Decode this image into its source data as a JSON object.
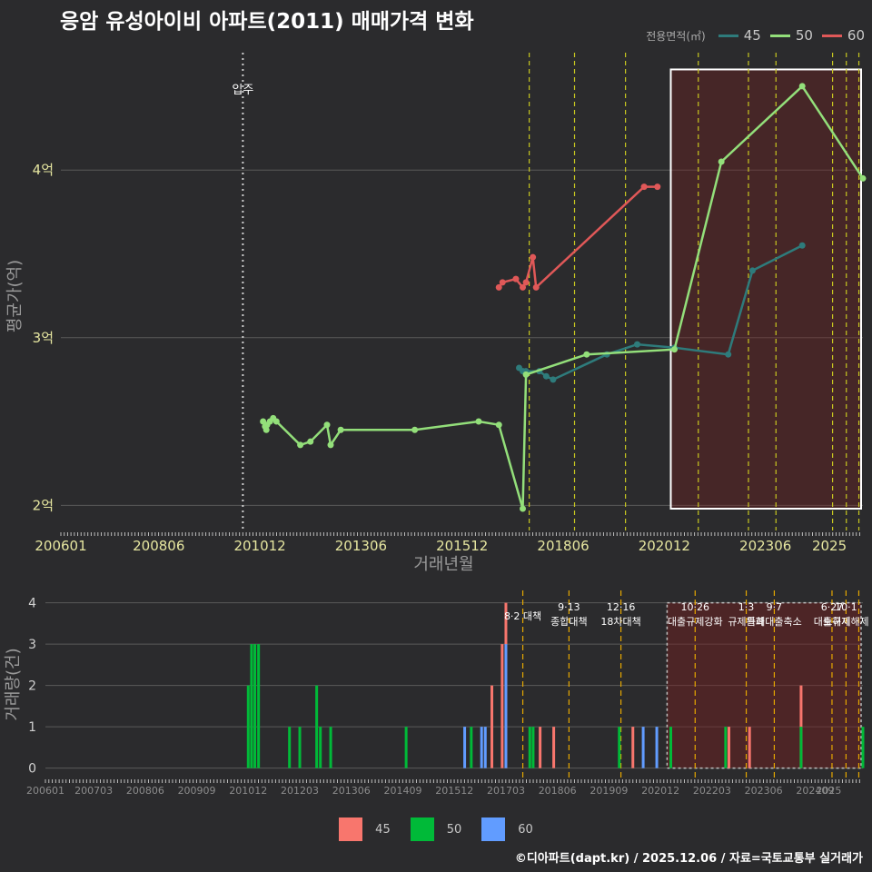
{
  "title": "응암 유성아이비 아파트(2011) 매매가격 변화",
  "footer": "©디아파트(dapt.kr) / 2025.12.06 / 자료=국토교통부 실거래가",
  "legend_top": {
    "title": "전용면적(㎡)",
    "items": [
      {
        "label": "45",
        "color": "#2e7b7b"
      },
      {
        "label": "50",
        "color": "#93df7a"
      },
      {
        "label": "60",
        "color": "#e05858"
      }
    ]
  },
  "legend_bottom": {
    "items": [
      {
        "label": "45",
        "color": "#f8766d"
      },
      {
        "label": "50",
        "color": "#00ba38"
      },
      {
        "label": "60",
        "color": "#619cff"
      }
    ]
  },
  "chart_data": [
    {
      "type": "line",
      "name": "price-chart",
      "xlabel": "거래년월",
      "ylabel": "평균가(억)",
      "x_range": [
        2006.0,
        2025.83
      ],
      "ylim": [
        1.85,
        4.7
      ],
      "y_ticks": [
        {
          "v": 2,
          "label": "2억"
        },
        {
          "v": 3,
          "label": "3억"
        },
        {
          "v": 4,
          "label": "4억"
        }
      ],
      "x_ticks": [
        {
          "v": 2006.0,
          "label": "200601"
        },
        {
          "v": 2008.42,
          "label": "200806"
        },
        {
          "v": 2010.92,
          "label": "201012"
        },
        {
          "v": 2013.42,
          "label": "201306"
        },
        {
          "v": 2015.92,
          "label": "201512"
        },
        {
          "v": 2018.42,
          "label": "201806"
        },
        {
          "v": 2020.92,
          "label": "202012"
        },
        {
          "v": 2023.42,
          "label": "202306"
        },
        {
          "v": 2025.0,
          "label": "2025"
        }
      ],
      "move_in": {
        "x": 2010.5,
        "label": "입주"
      },
      "policy_lines": [
        2017.58,
        2018.7,
        2019.96,
        2021.76,
        2023.0,
        2023.68,
        2025.08,
        2025.42,
        2025.73
      ],
      "highlight_range": [
        2021.08,
        2025.83
      ],
      "series": [
        {
          "name": "45",
          "color": "#2e7b7b",
          "points": [
            [
              2017.33,
              2.82
            ],
            [
              2017.42,
              2.8
            ],
            [
              2017.5,
              2.8
            ],
            [
              2017.83,
              2.8
            ],
            [
              2018.0,
              2.77
            ],
            [
              2018.17,
              2.75
            ],
            [
              2019.5,
              2.9
            ],
            [
              2020.25,
              2.96
            ],
            [
              2021.17,
              2.94
            ],
            [
              2022.5,
              2.9
            ],
            [
              2023.1,
              3.4
            ],
            [
              2024.33,
              3.55
            ]
          ]
        },
        {
          "name": "50",
          "color": "#93df7a",
          "points": [
            [
              2011.0,
              2.5
            ],
            [
              2011.05,
              2.47
            ],
            [
              2011.08,
              2.45
            ],
            [
              2011.1,
              2.48
            ],
            [
              2011.17,
              2.5
            ],
            [
              2011.25,
              2.52
            ],
            [
              2011.33,
              2.5
            ],
            [
              2011.92,
              2.36
            ],
            [
              2012.17,
              2.38
            ],
            [
              2012.58,
              2.48
            ],
            [
              2012.67,
              2.36
            ],
            [
              2012.92,
              2.45
            ],
            [
              2014.75,
              2.45
            ],
            [
              2016.33,
              2.5
            ],
            [
              2016.83,
              2.48
            ],
            [
              2017.42,
              1.98
            ],
            [
              2017.5,
              2.78
            ],
            [
              2019.0,
              2.9
            ],
            [
              2021.17,
              2.93
            ],
            [
              2022.33,
              4.05
            ],
            [
              2024.33,
              4.5
            ],
            [
              2025.83,
              3.95
            ]
          ]
        },
        {
          "name": "60",
          "color": "#e05858",
          "points": [
            [
              2016.83,
              3.3
            ],
            [
              2016.92,
              3.33
            ],
            [
              2017.25,
              3.35
            ],
            [
              2017.42,
              3.3
            ],
            [
              2017.5,
              3.33
            ],
            [
              2017.67,
              3.48
            ],
            [
              2017.75,
              3.3
            ],
            [
              2020.42,
              3.9
            ],
            [
              2020.75,
              3.9
            ]
          ]
        }
      ]
    },
    {
      "type": "bar",
      "name": "volume-chart",
      "ylabel": "거래량(건)",
      "x_range": [
        2006.0,
        2025.83
      ],
      "ylim": [
        -0.25,
        4.3
      ],
      "y_ticks": [
        0,
        1,
        2,
        3,
        4
      ],
      "x_ticks": [
        {
          "v": 2006.0,
          "label": "200601"
        },
        {
          "v": 2007.17,
          "label": "200703"
        },
        {
          "v": 2008.42,
          "label": "200806"
        },
        {
          "v": 2009.67,
          "label": "200909"
        },
        {
          "v": 2010.92,
          "label": "201012"
        },
        {
          "v": 2012.17,
          "label": "201203"
        },
        {
          "v": 2013.42,
          "label": "201306"
        },
        {
          "v": 2014.67,
          "label": "201409"
        },
        {
          "v": 2015.92,
          "label": "201512"
        },
        {
          "v": 2017.17,
          "label": "201703"
        },
        {
          "v": 2018.42,
          "label": "201806"
        },
        {
          "v": 2019.67,
          "label": "201909"
        },
        {
          "v": 2020.92,
          "label": "202012"
        },
        {
          "v": 2022.17,
          "label": "202203"
        },
        {
          "v": 2023.42,
          "label": "202306"
        },
        {
          "v": 2024.67,
          "label": "202409"
        },
        {
          "v": 2025.0,
          "label": "2025"
        }
      ],
      "highlight_range": [
        2021.08,
        2025.83
      ],
      "policy_lines": [
        2017.58,
        2018.7,
        2019.96,
        2021.76,
        2023.0,
        2023.68,
        2025.08,
        2025.42,
        2025.73
      ],
      "policy_labels": [
        {
          "x": 2017.58,
          "lines": [
            "8·2 대책"
          ]
        },
        {
          "x": 2018.7,
          "lines": [
            "9·13",
            "종합대책"
          ]
        },
        {
          "x": 2019.96,
          "lines": [
            "12·16",
            "18차대책"
          ]
        },
        {
          "x": 2021.76,
          "lines": [
            "10·26",
            "대출규제강화"
          ]
        },
        {
          "x": 2023.0,
          "lines": [
            "1·3",
            "규제완화"
          ]
        },
        {
          "x": 2023.68,
          "lines": [
            "9·7",
            "특례대출축소"
          ]
        },
        {
          "x": 2025.08,
          "lines": [
            "6·27",
            "대출규제"
          ]
        },
        {
          "x": 2025.42,
          "lines": [
            "10·1",
            "토허제해제"
          ]
        }
      ],
      "bars": [
        {
          "x": 2010.92,
          "series": "50",
          "v": 2
        },
        {
          "x": 2011.0,
          "series": "50",
          "v": 3
        },
        {
          "x": 2011.08,
          "series": "50",
          "v": 3
        },
        {
          "x": 2011.17,
          "series": "50",
          "v": 3
        },
        {
          "x": 2011.92,
          "series": "50",
          "v": 1
        },
        {
          "x": 2012.17,
          "series": "50",
          "v": 1
        },
        {
          "x": 2012.58,
          "series": "50",
          "v": 2
        },
        {
          "x": 2012.67,
          "series": "50",
          "v": 1
        },
        {
          "x": 2012.92,
          "series": "50",
          "v": 1
        },
        {
          "x": 2014.75,
          "series": "50",
          "v": 1
        },
        {
          "x": 2016.17,
          "series": "60",
          "v": 1
        },
        {
          "x": 2016.33,
          "series": "50",
          "v": 1
        },
        {
          "x": 2016.58,
          "series": "60",
          "v": 1
        },
        {
          "x": 2016.67,
          "series": "60",
          "v": 1
        },
        {
          "x": 2016.83,
          "series": "45",
          "v": 2
        },
        {
          "x": 2017.08,
          "series": "45",
          "v": 3
        },
        {
          "x": 2017.17,
          "series": "45",
          "v": 4
        },
        {
          "x": 2017.17,
          "series": "60",
          "v": 3
        },
        {
          "x": 2017.75,
          "series": "50",
          "v": 1
        },
        {
          "x": 2017.83,
          "series": "50",
          "v": 1
        },
        {
          "x": 2018.0,
          "series": "45",
          "v": 1
        },
        {
          "x": 2018.33,
          "series": "45",
          "v": 1
        },
        {
          "x": 2019.92,
          "series": "50",
          "v": 1
        },
        {
          "x": 2020.25,
          "series": "45",
          "v": 1
        },
        {
          "x": 2020.5,
          "series": "60",
          "v": 1
        },
        {
          "x": 2020.83,
          "series": "60",
          "v": 1
        },
        {
          "x": 2021.17,
          "series": "50",
          "v": 1
        },
        {
          "x": 2022.5,
          "series": "50",
          "v": 1
        },
        {
          "x": 2022.58,
          "series": "45",
          "v": 1
        },
        {
          "x": 2023.08,
          "series": "45",
          "v": 1
        },
        {
          "x": 2024.33,
          "series": "45",
          "v": 2
        },
        {
          "x": 2024.33,
          "series": "50",
          "v": 1
        },
        {
          "x": 2025.83,
          "series": "50",
          "v": 1
        }
      ]
    }
  ]
}
